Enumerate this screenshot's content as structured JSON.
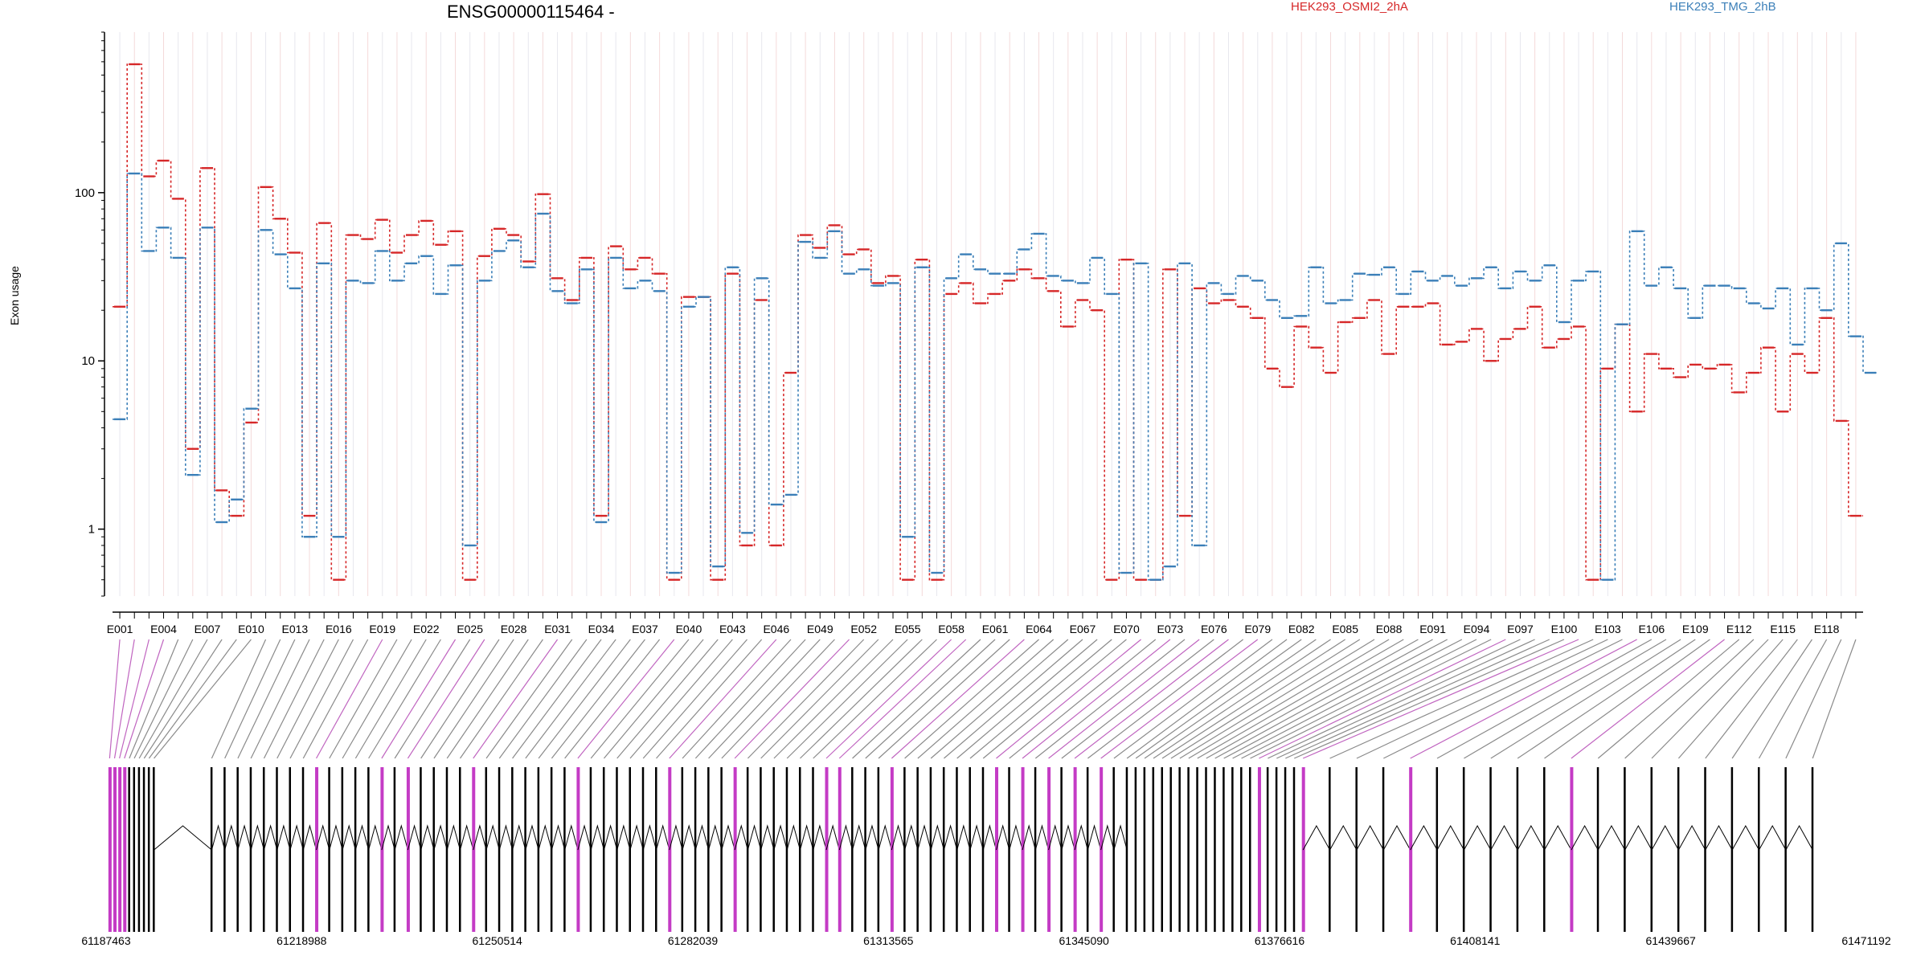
{
  "chart_data": {
    "type": "line",
    "title": "ENSG00000115464 -",
    "ylabel": "Exon usage",
    "yscale": "log",
    "ylim": [
      0.4,
      900
    ],
    "yticks": [
      {
        "value": 1,
        "label": "1"
      },
      {
        "value": 10,
        "label": "10"
      },
      {
        "value": 100,
        "label": "100"
      }
    ],
    "series": [
      {
        "name": "HEK293_OSMI2_2hA",
        "color": "#d62728",
        "values": [
          21,
          580,
          125,
          155,
          92,
          3,
          140,
          1.7,
          1.2,
          4.3,
          108,
          70,
          44,
          1.2,
          66,
          0.5,
          56,
          53,
          69,
          44,
          56,
          68,
          49,
          59,
          0.5,
          42,
          61,
          56,
          39,
          98,
          31,
          23,
          41,
          1.2,
          48,
          35,
          41,
          33,
          0.5,
          24,
          24,
          0.5,
          33,
          0.8,
          23,
          0.8,
          8.5,
          56,
          47,
          64,
          43,
          46,
          29,
          32,
          0.5,
          40,
          0.5,
          25,
          29,
          22,
          25,
          30,
          35,
          31,
          26,
          16,
          23,
          20,
          0.5,
          40,
          0.5,
          0.5,
          35,
          1.2,
          27,
          22,
          23,
          21,
          18,
          9,
          7,
          16,
          12,
          8.5,
          17,
          18,
          23,
          11,
          21,
          21,
          22,
          12.5,
          13,
          15.5,
          10,
          13.5,
          15.5,
          21,
          12,
          13.5,
          16,
          0.5,
          9,
          16.5,
          5,
          11,
          9,
          8,
          9.5,
          9,
          9.5,
          6.5,
          8.5,
          12,
          5,
          11,
          8.5,
          18,
          4.4,
          1.2
        ]
      },
      {
        "name": "HEK293_TMG_2hB",
        "color": "#3b7fb8",
        "values": [
          4.5,
          130,
          45,
          62,
          41,
          2.1,
          62,
          1.1,
          1.5,
          5.2,
          60,
          43,
          27,
          0.9,
          38,
          0.9,
          30,
          29,
          45,
          30,
          38,
          42,
          25,
          37,
          0.8,
          30,
          45,
          52,
          36,
          75,
          26,
          22,
          35,
          1.1,
          41,
          27,
          30,
          26,
          0.55,
          21,
          24,
          0.6,
          36,
          0.95,
          31,
          1.4,
          1.6,
          51,
          41,
          59,
          33,
          35,
          28,
          29,
          0.9,
          36,
          0.55,
          31,
          43,
          35,
          33,
          33,
          46,
          57,
          32,
          30,
          29,
          41,
          25,
          0.55,
          38,
          0.5,
          0.6,
          38,
          0.8,
          29,
          25,
          32,
          30,
          23,
          18,
          18.5,
          36,
          22,
          23,
          33,
          32.5,
          36,
          25,
          34,
          30,
          32,
          28,
          31,
          36,
          27,
          34,
          30,
          37,
          17,
          30,
          34,
          0.5,
          16.5,
          59,
          28,
          36,
          27,
          18,
          28,
          28,
          27,
          22,
          20.5,
          27,
          12.5,
          27,
          20,
          50,
          14,
          8.5
        ]
      }
    ],
    "exon_ticks": [
      "E001",
      "E004",
      "E007",
      "E010",
      "E013",
      "E016",
      "E019",
      "E022",
      "E025",
      "E028",
      "E031",
      "E034",
      "E037",
      "E040",
      "E043",
      "E046",
      "E049",
      "E052",
      "E055",
      "E058",
      "E061",
      "E064",
      "E067",
      "E070",
      "E073",
      "E076",
      "E079",
      "E082",
      "E085",
      "E088",
      "E091",
      "E094",
      "E097",
      "E100",
      "E103",
      "E106",
      "E109",
      "E112",
      "E115",
      "E118"
    ],
    "genomic_axis": {
      "range": [
        61187463,
        61471192
      ],
      "tick_labels": [
        "61187463",
        "61218988",
        "61250514",
        "61282039",
        "61313565",
        "61345090",
        "61376616",
        "61408141",
        "61439667",
        "61471192"
      ]
    },
    "grid": true
  }
}
